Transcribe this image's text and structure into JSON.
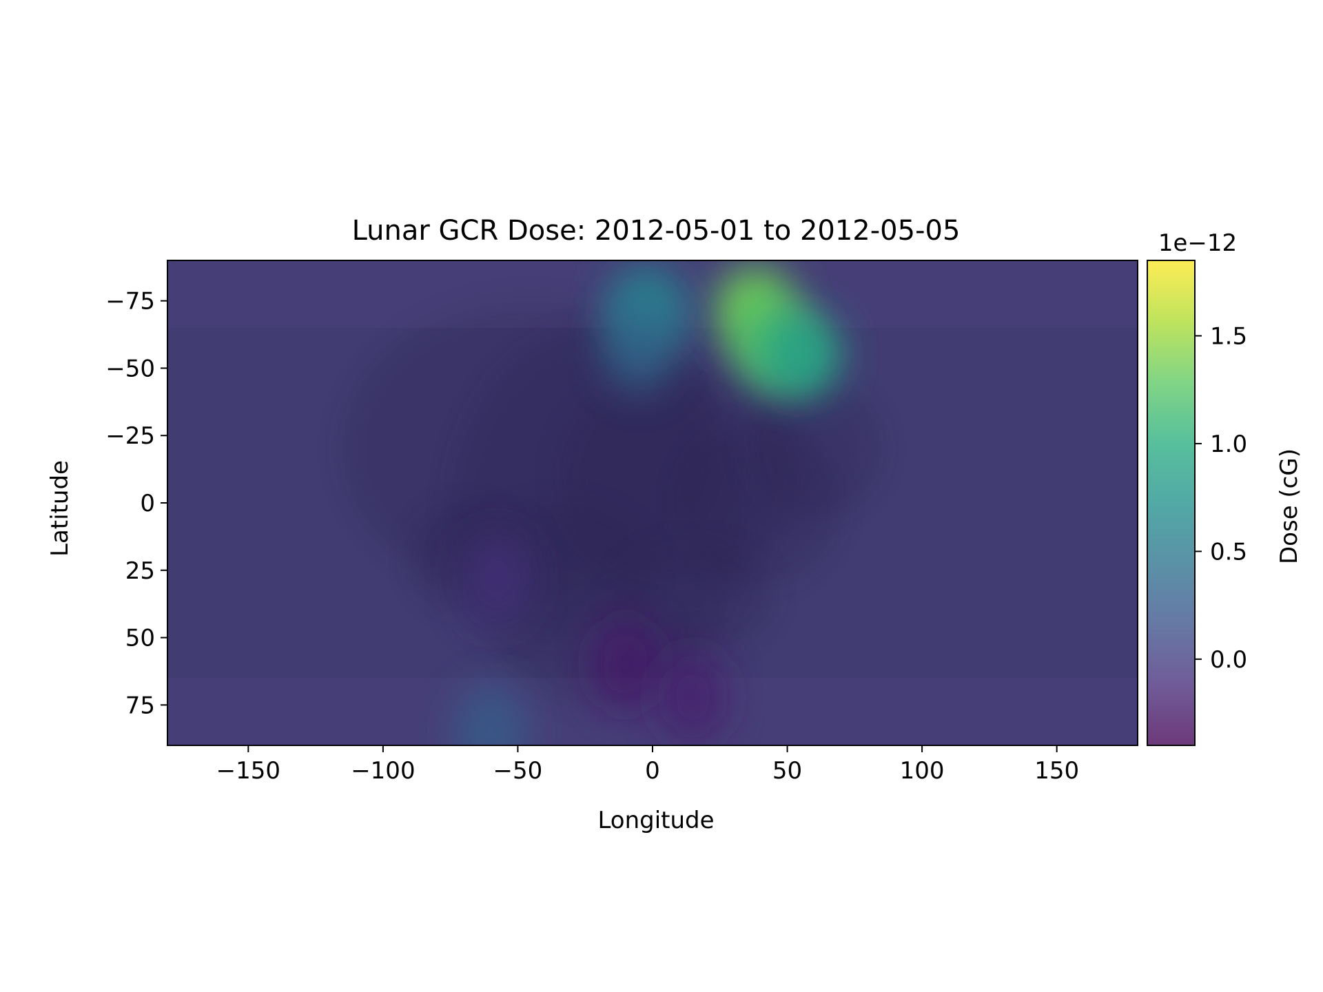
{
  "chart_data": {
    "type": "heatmap",
    "title": "Lunar GCR Dose: 2012-05-01 to 2012-05-05",
    "xlabel": "Longitude",
    "ylabel": "Latitude",
    "xlim": [
      -180,
      180
    ],
    "ylim": [
      -90,
      90
    ],
    "y_inverted": true,
    "x_ticks": [
      -150,
      -100,
      -50,
      0,
      50,
      100,
      150
    ],
    "x_tick_labels": [
      "−150",
      "−100",
      "−50",
      "0",
      "50",
      "100",
      "150"
    ],
    "y_ticks": [
      -75,
      -50,
      -25,
      0,
      25,
      50,
      75
    ],
    "y_tick_labels": [
      "−75",
      "−50",
      "−25",
      "0",
      "25",
      "50",
      "75"
    ],
    "colorbar": {
      "label": "Dose (cG)",
      "offset_label": "1e−12",
      "colormap": "viridis",
      "range": [
        -0.4,
        1.85
      ],
      "ticks": [
        0.0,
        0.5,
        1.0,
        1.5
      ],
      "tick_labels": [
        "0.0",
        "0.5",
        "1.0",
        "1.5"
      ]
    },
    "background": "lunar surface map",
    "background_level": 0.0,
    "hotspots": [
      {
        "lon": 38,
        "lat": -72,
        "value": 1.35
      },
      {
        "lon": 45,
        "lat": -58,
        "value": 1.25
      },
      {
        "lon": 55,
        "lat": -55,
        "value": 0.9
      },
      {
        "lon": -2,
        "lat": -72,
        "value": 0.62
      },
      {
        "lon": -5,
        "lat": -58,
        "value": 0.35
      },
      {
        "lon": -10,
        "lat": 60,
        "value": -0.25
      },
      {
        "lon": 15,
        "lat": 72,
        "value": -0.22
      },
      {
        "lon": -58,
        "lat": 28,
        "value": -0.08
      },
      {
        "lon": -60,
        "lat": 85,
        "value": 0.3
      }
    ]
  }
}
